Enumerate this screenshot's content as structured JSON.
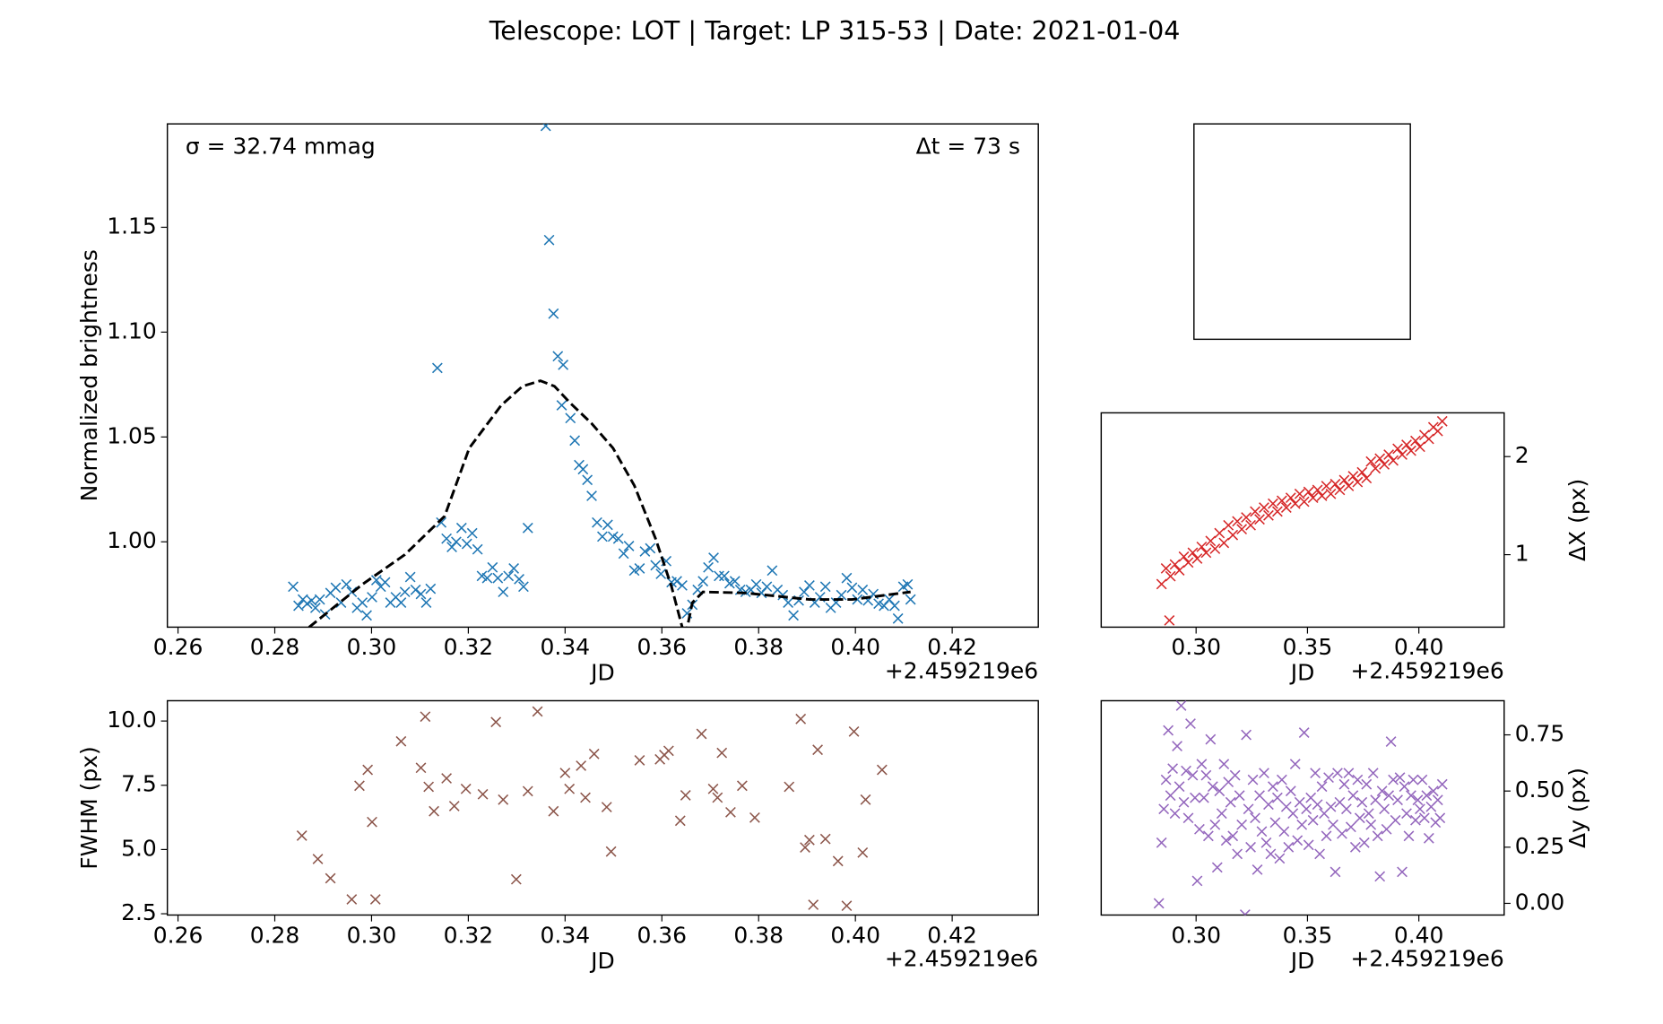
{
  "title": "Telescope: LOT  |  Target: LP 315-53  |  Date: 2021-01-04",
  "chart_data": [
    {
      "type": "scatter",
      "ylabel": "Normalized brightness",
      "xlabel": "JD",
      "xoffset": "+2.459219e6",
      "annotations": [
        "σ = 32.74 mmag",
        "Δt = 73 s"
      ],
      "xlim": [
        0.2578,
        0.4378
      ],
      "ylim": [
        0.9593,
        1.1993
      ],
      "xticks": [
        0.26,
        0.28,
        {
          "value": 0.3,
          "label": "0.30"
        },
        0.32,
        0.34,
        0.36,
        0.38,
        {
          "value": 0.4,
          "label": "0.40"
        },
        0.42
      ],
      "yticks": [
        {
          "value": 1,
          "label": "1.00"
        },
        1.05,
        {
          "value": 1.1,
          "label": "1.10"
        },
        1.15
      ],
      "series": [
        {
          "color": "#1f77b4",
          "marker": "x",
          "x": [
            0.2838,
            0.2849,
            0.2858,
            0.2867,
            0.2876,
            0.2884,
            0.2893,
            0.2904,
            0.2915,
            0.2926,
            0.2937,
            0.2948,
            0.2959,
            0.297,
            0.2981,
            0.299,
            0.3001,
            0.301,
            0.3019,
            0.3028,
            0.3039,
            0.305,
            0.3061,
            0.3069,
            0.308,
            0.3091,
            0.3102,
            0.3113,
            0.3122,
            0.3136,
            0.3144,
            0.3155,
            0.3166,
            0.3175,
            0.3186,
            0.3197,
            0.3208,
            0.3219,
            0.3228,
            0.3239,
            0.325,
            0.3261,
            0.3272,
            0.3283,
            0.3294,
            0.3305,
            0.3314,
            0.3323,
            0.336,
            0.3367,
            0.3376,
            0.3385,
            0.3396,
            0.3393,
            0.3411,
            0.342,
            0.3429,
            0.3437,
            0.3446,
            0.3455,
            0.3466,
            0.3477,
            0.3488,
            0.3499,
            0.351,
            0.3521,
            0.3532,
            0.3543,
            0.3554,
            0.3565,
            0.3576,
            0.3587,
            0.3598,
            0.3609,
            0.362,
            0.3631,
            0.3642,
            0.3652,
            0.3663,
            0.3674,
            0.3685,
            0.3696,
            0.3707,
            0.3718,
            0.3729,
            0.374,
            0.3751,
            0.3762,
            0.3773,
            0.3784,
            0.3795,
            0.3806,
            0.3817,
            0.3828,
            0.3839,
            0.385,
            0.3861,
            0.3872,
            0.3883,
            0.3894,
            0.3905,
            0.3916,
            0.3927,
            0.3938,
            0.3949,
            0.396,
            0.3971,
            0.3982,
            0.3993,
            0.4004,
            0.4015,
            0.4026,
            0.4037,
            0.4048,
            0.4059,
            0.407,
            0.4081,
            0.4088,
            0.4099,
            0.4108,
            0.4114
          ],
          "values": [
            0.9786,
            0.9695,
            0.9725,
            0.9705,
            0.972,
            0.9685,
            0.9725,
            0.9654,
            0.9756,
            0.9781,
            0.971,
            0.9797,
            0.9761,
            0.9685,
            0.971,
            0.9649,
            0.9736,
            0.9817,
            0.9786,
            0.9807,
            0.971,
            0.9736,
            0.971,
            0.9761,
            0.9832,
            0.9771,
            0.9751,
            0.971,
            0.9776,
            1.0829,
            1.0092,
            1.0015,
            0.9975,
            1.0,
            1.0066,
            0.999,
            1.0041,
            0.9964,
            0.9837,
            0.9827,
            0.9878,
            0.9827,
            0.9761,
            0.9837,
            0.9873,
            0.9822,
            0.9786,
            1.0066,
            1.1983,
            1.1439,
            1.1088,
            1.0885,
            1.0844,
            1.0651,
            1.059,
            1.0483,
            1.0366,
            1.0346,
            1.0295,
            1.0219,
            1.0092,
            1.0025,
            1.0081,
            1.0025,
            1.0015,
            0.9944,
            0.998,
            0.9863,
            0.9873,
            0.9954,
            0.9969,
            0.9888,
            0.9847,
            0.9908,
            0.9807,
            0.9812,
            0.9792,
            0.9659,
            0.97,
            0.9771,
            0.9812,
            0.9878,
            0.9924,
            0.9837,
            0.9837,
            0.9802,
            0.9812,
            0.9771,
            0.9761,
            0.9771,
            0.9797,
            0.9756,
            0.9786,
            0.9863,
            0.9771,
            0.9746,
            0.971,
            0.9649,
            0.972,
            0.9761,
            0.9792,
            0.971,
            0.9736,
            0.9786,
            0.9685,
            0.971,
            0.9746,
            0.9827,
            0.9781,
            0.9725,
            0.9771,
            0.972,
            0.9751,
            0.9705,
            0.9695,
            0.9725,
            0.9695,
            0.9634,
            0.9786,
            0.9797,
            0.9725
          ]
        },
        {
          "color": "#000000",
          "linestyle": "dashed",
          "x": [
            0.2849,
            0.2871,
            0.2981,
            0.3069,
            0.3151,
            0.3202,
            0.3268,
            0.3312,
            0.3349,
            0.3378,
            0.3411,
            0.3455,
            0.3499,
            0.3543,
            0.3587,
            0.362,
            0.3642,
            0.3648,
            0.3655,
            0.3663,
            0.3685,
            0.3773,
            0.3905,
            0.3993,
            0.4114
          ],
          "values": [
            0.955,
            0.9593,
            0.9797,
            0.9939,
            1.0122,
            1.0447,
            1.0651,
            1.0742,
            1.0768,
            1.0742,
            1.0661,
            1.0564,
            1.0447,
            1.0269,
            1.0015,
            0.9786,
            0.9593,
            0.955,
            0.962,
            0.971,
            0.9761,
            0.9756,
            0.9725,
            0.9725,
            0.9761
          ]
        }
      ]
    },
    {
      "type": "scatter",
      "ylabel": "ΔX (px)",
      "xlabel": "JD",
      "xoffset": "+2.459219e6",
      "yaxis_side": "right",
      "xlim": [
        0.2574,
        0.4383
      ],
      "ylim": [
        0.261,
        2.446
      ],
      "xticks": [
        {
          "value": 0.3,
          "label": "0.30"
        },
        0.35,
        {
          "value": 0.4,
          "label": "0.40"
        }
      ],
      "yticks": [
        1,
        2
      ],
      "series": [
        {
          "color": "#d62728",
          "marker": "x",
          "x": [
            0.2845,
            0.2865,
            0.288,
            0.2885,
            0.2905,
            0.2925,
            0.2945,
            0.2965,
            0.2985,
            0.3005,
            0.3025,
            0.3045,
            0.3065,
            0.3085,
            0.3105,
            0.3125,
            0.3145,
            0.3165,
            0.3185,
            0.3205,
            0.3225,
            0.3245,
            0.3265,
            0.3285,
            0.3305,
            0.3325,
            0.3345,
            0.3365,
            0.3385,
            0.3405,
            0.3425,
            0.3445,
            0.3465,
            0.3485,
            0.3505,
            0.3525,
            0.3545,
            0.3565,
            0.3585,
            0.3605,
            0.3625,
            0.3645,
            0.3665,
            0.3685,
            0.3705,
            0.3725,
            0.3745,
            0.3765,
            0.3785,
            0.3805,
            0.3825,
            0.3845,
            0.3865,
            0.3885,
            0.3905,
            0.3925,
            0.3945,
            0.3965,
            0.3985,
            0.4005,
            0.4025,
            0.4045,
            0.4065,
            0.4085,
            0.4105
          ],
          "values": [
            0.7,
            0.86,
            0.33,
            0.78,
            0.9,
            0.84,
            0.98,
            0.92,
            1.02,
            0.96,
            1.08,
            1.02,
            1.14,
            1.06,
            1.22,
            1.12,
            1.3,
            1.2,
            1.34,
            1.26,
            1.38,
            1.3,
            1.44,
            1.36,
            1.48,
            1.4,
            1.52,
            1.44,
            1.55,
            1.48,
            1.58,
            1.52,
            1.62,
            1.54,
            1.64,
            1.58,
            1.66,
            1.6,
            1.7,
            1.62,
            1.72,
            1.66,
            1.76,
            1.7,
            1.8,
            1.74,
            1.84,
            1.78,
            1.95,
            1.88,
            1.98,
            1.92,
            2.02,
            1.96,
            2.08,
            2.02,
            2.12,
            2.06,
            2.16,
            2.1,
            2.22,
            2.18,
            2.3,
            2.26,
            2.36
          ]
        }
      ]
    },
    {
      "type": "scatter",
      "ylabel": "FWHM (px)",
      "xlabel": "JD",
      "xoffset": "+2.459219e6",
      "xlim": [
        0.2578,
        0.4378
      ],
      "ylim": [
        2.45,
        10.79
      ],
      "xticks": [
        0.26,
        0.28,
        {
          "value": 0.3,
          "label": "0.30"
        },
        0.32,
        0.34,
        0.36,
        0.38,
        {
          "value": 0.4,
          "label": "0.40"
        },
        0.42
      ],
      "yticks": [
        2.5,
        {
          "value": 5,
          "label": "5.0"
        },
        7.5,
        {
          "value": 10,
          "label": "10.0"
        }
      ],
      "series": [
        {
          "color": "#8c564b",
          "marker": "x",
          "x": [
            0.2856,
            0.2889,
            0.2915,
            0.2959,
            0.2975,
            0.2992,
            0.3001,
            0.3008,
            0.3061,
            0.3102,
            0.3111,
            0.3118,
            0.3129,
            0.3155,
            0.3171,
            0.3195,
            0.323,
            0.3257,
            0.3272,
            0.3299,
            0.3323,
            0.3343,
            0.3376,
            0.34,
            0.3409,
            0.3433,
            0.3442,
            0.346,
            0.3486,
            0.3495,
            0.3554,
            0.3596,
            0.3605,
            0.3614,
            0.3638,
            0.3649,
            0.3682,
            0.3706,
            0.3715,
            0.3724,
            0.3742,
            0.3766,
            0.3792,
            0.3863,
            0.3887,
            0.3896,
            0.3905,
            0.3913,
            0.3922,
            0.3938,
            0.3964,
            0.3982,
            0.3997,
            0.4015,
            0.4021,
            0.4055
          ],
          "values": [
            5.54,
            4.63,
            3.88,
            3.06,
            7.48,
            8.1,
            6.07,
            3.06,
            9.21,
            8.18,
            10.17,
            7.44,
            6.49,
            7.77,
            6.69,
            7.36,
            7.15,
            9.96,
            6.94,
            3.84,
            7.27,
            10.37,
            6.49,
            7.98,
            7.36,
            8.26,
            7.02,
            8.72,
            6.65,
            4.92,
            8.47,
            8.51,
            8.68,
            8.84,
            6.12,
            7.11,
            9.5,
            7.36,
            7.02,
            8.76,
            6.45,
            7.48,
            6.24,
            7.44,
            10.08,
            5.08,
            5.37,
            2.85,
            8.88,
            5.41,
            4.55,
            2.81,
            9.59,
            4.88,
            6.94,
            8.1
          ]
        }
      ]
    },
    {
      "type": "scatter",
      "ylabel": "Δy (px)",
      "xlabel": "JD",
      "xoffset": "+2.459219e6",
      "yaxis_side": "right",
      "xlim": [
        0.2574,
        0.4383
      ],
      "ylim": [
        -0.052,
        0.902
      ],
      "xticks": [
        {
          "value": 0.3,
          "label": "0.30"
        },
        0.35,
        {
          "value": 0.4,
          "label": "0.40"
        }
      ],
      "yticks": [
        {
          "value": 0,
          "label": "0.00"
        },
        0.25,
        {
          "value": 0.5,
          "label": "0.50"
        },
        0.75
      ],
      "series": [
        {
          "color": "#9467bd",
          "marker": "x",
          "x": [
            0.2833,
            0.2845,
            0.2855,
            0.2865,
            0.2875,
            0.2885,
            0.2895,
            0.2905,
            0.2915,
            0.2925,
            0.2933,
            0.2945,
            0.2955,
            0.2965,
            0.2975,
            0.2985,
            0.2995,
            0.3005,
            0.3015,
            0.3025,
            0.3035,
            0.3045,
            0.3055,
            0.3065,
            0.3075,
            0.3085,
            0.3095,
            0.3105,
            0.3115,
            0.3125,
            0.3135,
            0.3145,
            0.3155,
            0.3165,
            0.3175,
            0.3185,
            0.3195,
            0.3205,
            0.322,
            0.3225,
            0.3235,
            0.3245,
            0.3255,
            0.3265,
            0.3275,
            0.3285,
            0.3295,
            0.3305,
            0.3315,
            0.3325,
            0.3335,
            0.3345,
            0.3355,
            0.3365,
            0.3375,
            0.3385,
            0.3395,
            0.3405,
            0.3415,
            0.3425,
            0.3435,
            0.3445,
            0.3455,
            0.3465,
            0.3475,
            0.3485,
            0.3495,
            0.3505,
            0.3515,
            0.3525,
            0.3535,
            0.3545,
            0.3555,
            0.3565,
            0.3575,
            0.3585,
            0.3595,
            0.3605,
            0.3615,
            0.3625,
            0.3635,
            0.3645,
            0.3655,
            0.3665,
            0.3675,
            0.3685,
            0.3695,
            0.3705,
            0.3715,
            0.3725,
            0.3735,
            0.3745,
            0.3755,
            0.3765,
            0.3775,
            0.3785,
            0.3795,
            0.3805,
            0.3815,
            0.3825,
            0.3835,
            0.3845,
            0.3855,
            0.3865,
            0.3875,
            0.3885,
            0.3895,
            0.3905,
            0.3915,
            0.3925,
            0.3935,
            0.3945,
            0.3955,
            0.3965,
            0.3975,
            0.3985,
            0.3995,
            0.4005,
            0.4015,
            0.4025,
            0.4035,
            0.4045,
            0.4055,
            0.4065,
            0.4075,
            0.4085,
            0.4095,
            0.4105
          ],
          "values": [
            0,
            0.27,
            0.42,
            0.55,
            0.77,
            0.48,
            0.6,
            0.4,
            0.7,
            0.52,
            0.88,
            0.45,
            0.59,
            0.38,
            0.8,
            0.57,
            0.47,
            0.1,
            0.33,
            0.62,
            0.47,
            0.57,
            0.3,
            0.73,
            0.52,
            0.35,
            0.16,
            0.5,
            0.4,
            0.62,
            0.28,
            0.54,
            0.45,
            0.3,
            0.57,
            0.22,
            0.48,
            0.35,
            -0.05,
            0.75,
            0.42,
            0.25,
            0.55,
            0.38,
            0.15,
            0.48,
            0.32,
            0.58,
            0.27,
            0.44,
            0.22,
            0.52,
            0.36,
            0.47,
            0.2,
            0.55,
            0.32,
            0.43,
            0.25,
            0.5,
            0.4,
            0.62,
            0.28,
            0.45,
            0.35,
            0.76,
            0.42,
            0.26,
            0.47,
            0.37,
            0.58,
            0.44,
            0.22,
            0.52,
            0.4,
            0.3,
            0.56,
            0.43,
            0.35,
            0.14,
            0.58,
            0.45,
            0.31,
            0.53,
            0.42,
            0.58,
            0.34,
            0.48,
            0.25,
            0.55,
            0.38,
            0.45,
            0.27,
            0.53,
            0.4,
            0.35,
            0.58,
            0.46,
            0.3,
            0.12,
            0.5,
            0.42,
            0.33,
            0.48,
            0.72,
            0.55,
            0.37,
            0.46,
            0.56,
            0.14,
            0.52,
            0.4,
            0.3,
            0.48,
            0.55,
            0.37,
            0.46,
            0.42,
            0.55,
            0.38,
            0.48,
            0.29,
            0.43,
            0.5,
            0.36,
            0.46,
            0.38,
            0.53
          ]
        }
      ]
    }
  ]
}
